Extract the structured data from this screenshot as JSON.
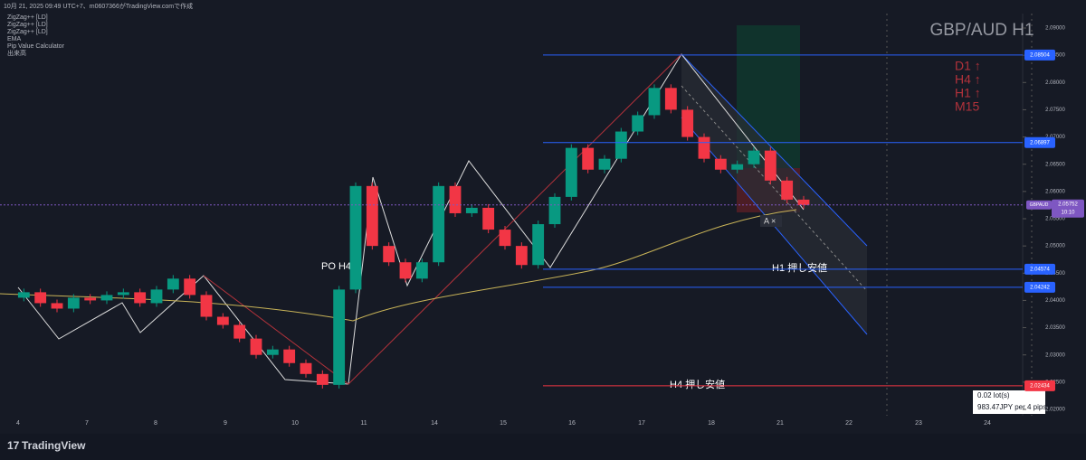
{
  "header": {
    "caption": "10月 21, 2025 09:49 UTC+7、m0607366がTradingView.comで作成",
    "indicators": [
      "ZigZag++ [LD]",
      "ZigZag++ [LD]",
      "ZigZag++ [LD]",
      "EMA",
      "Pip Value Calculator",
      "出来高"
    ]
  },
  "symbol_title": "GBP/AUD H1",
  "trend_list": [
    "D1 ↑",
    "H4 ↑",
    "H1 ↑",
    "M15"
  ],
  "price_axis": {
    "ticks": [
      {
        "value": 2.09,
        "label": "2.09000"
      },
      {
        "value": 2.085,
        "label": "2.08500"
      },
      {
        "value": 2.08,
        "label": "2.08000"
      },
      {
        "value": 2.075,
        "label": "2.07500"
      },
      {
        "value": 2.07,
        "label": "2.07000"
      },
      {
        "value": 2.065,
        "label": "2.06500"
      },
      {
        "value": 2.06,
        "label": "2.06000"
      },
      {
        "value": 2.055,
        "label": "2.05500"
      },
      {
        "value": 2.05,
        "label": "2.05000"
      },
      {
        "value": 2.045,
        "label": "2.04500"
      },
      {
        "value": 2.04,
        "label": "2.04000"
      },
      {
        "value": 2.035,
        "label": "2.03500"
      },
      {
        "value": 2.03,
        "label": "2.03000"
      },
      {
        "value": 2.025,
        "label": "2.02500"
      },
      {
        "value": 2.02,
        "label": "2.02000"
      }
    ],
    "range": [
      2.02,
      2.09
    ]
  },
  "price_tags": [
    {
      "value": 2.08504,
      "color": "#2962ff"
    },
    {
      "value": 2.06897,
      "color": "#2962ff"
    },
    {
      "value": 2.04574,
      "color": "#2962ff"
    },
    {
      "value": 2.04242,
      "color": "#2962ff"
    },
    {
      "value": 2.02434,
      "color": "#f23645"
    }
  ],
  "current_price": {
    "symbol": "GBPAUD",
    "value": 2.05752,
    "countdown": "10:10"
  },
  "date_axis": [
    "4",
    "7",
    "8",
    "9",
    "10",
    "11",
    "14",
    "15",
    "16",
    "17",
    "18",
    "21",
    "22",
    "23",
    "24"
  ],
  "closes": [
    2.0405,
    2.0415,
    2.0395,
    2.0385,
    2.0405,
    2.04,
    2.041,
    2.0415,
    2.0395,
    2.042,
    2.044,
    2.041,
    2.037,
    2.0355,
    2.033,
    2.03,
    2.031,
    2.0285,
    2.0265,
    2.0245,
    2.042,
    2.061,
    2.05,
    2.047,
    2.044,
    2.047,
    2.061,
    2.056,
    2.057,
    2.053,
    2.05,
    2.0465,
    2.054,
    2.059,
    2.068,
    2.064,
    2.066,
    2.071,
    2.074,
    2.079,
    2.075,
    2.07,
    2.066,
    2.064,
    2.065,
    2.0675,
    2.062,
    2.0585,
    2.0575
  ],
  "annotations": {
    "po_h4": "PO H4 ↑",
    "h1_low": "H1 押し安値",
    "h4_low": "H4 押し安値",
    "alert": "A ×"
  },
  "pip_calculator": {
    "lots": "0.02 lot(s)",
    "value": "983.47JPY per 4 pips"
  },
  "footer": {
    "brand": "TradingView"
  }
}
